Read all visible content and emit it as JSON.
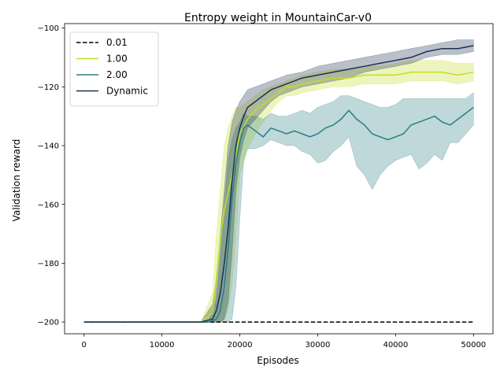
{
  "chart_data": {
    "type": "line",
    "title": "Entropy weight in MountainCar-v0",
    "xlabel": "Episodes",
    "ylabel": "Validation reward",
    "xlim": [
      -2500,
      52500
    ],
    "ylim": [
      -204,
      -98.5
    ],
    "xticks": [
      0,
      10000,
      20000,
      30000,
      40000,
      50000
    ],
    "yticks": [
      -200,
      -180,
      -160,
      -140,
      -120,
      -100
    ],
    "legend_position": "upper-left",
    "grid": false,
    "series": [
      {
        "name": "0.01",
        "color": "#000000",
        "dashed": true,
        "band": false,
        "x": [
          0,
          50000
        ],
        "y": [
          -200,
          -200
        ],
        "lower": [
          -200,
          -200
        ],
        "upper": [
          -200,
          -200
        ]
      },
      {
        "name": "1.00",
        "color": "#c2df23",
        "dashed": false,
        "band": true,
        "x": [
          0,
          15000,
          16500,
          17000,
          17500,
          18000,
          18500,
          19000,
          19500,
          20000,
          21000,
          22000,
          23000,
          24000,
          25000,
          26000,
          27000,
          28000,
          30000,
          32000,
          34000,
          36000,
          38000,
          40000,
          42000,
          44000,
          46000,
          48000,
          50000
        ],
        "y": [
          -200,
          -200,
          -197,
          -185,
          -172,
          -162,
          -156,
          -150,
          -143,
          -136,
          -131,
          -128,
          -126,
          -124,
          -122,
          -120,
          -120,
          -119,
          -118,
          -117,
          -117,
          -116,
          -116,
          -116,
          -115,
          -115,
          -115,
          -116,
          -115
        ],
        "lower": [
          -200,
          -200,
          -200,
          -200,
          -200,
          -199,
          -196,
          -187,
          -170,
          -150,
          -141,
          -136,
          -132,
          -128,
          -125,
          -123,
          -123,
          -122,
          -121,
          -120,
          -120,
          -119,
          -119,
          -119,
          -118,
          -118,
          -118,
          -119,
          -118
        ],
        "upper": [
          -200,
          -200,
          -190,
          -170,
          -155,
          -140,
          -134,
          -130,
          -127,
          -127,
          -125,
          -123,
          -121,
          -120,
          -119,
          -118,
          -117,
          -116,
          -115,
          -114,
          -114,
          -113,
          -113,
          -112,
          -111,
          -111,
          -111,
          -112,
          -112
        ]
      },
      {
        "name": "2.00",
        "color": "#2a7e85",
        "dashed": false,
        "band": true,
        "x": [
          0,
          16000,
          17000,
          17500,
          18000,
          18500,
          19000,
          19500,
          20000,
          20500,
          21000,
          22000,
          23000,
          24000,
          25000,
          26000,
          27000,
          28000,
          29000,
          30000,
          31000,
          32000,
          33000,
          34000,
          35000,
          36000,
          37000,
          38000,
          39000,
          40000,
          41000,
          42000,
          43000,
          44000,
          45000,
          46000,
          47000,
          48000,
          49000,
          50000
        ],
        "y": [
          -200,
          -200,
          -199,
          -196,
          -188,
          -175,
          -158,
          -146,
          -139,
          -134,
          -133,
          -135,
          -137,
          -134,
          -135,
          -136,
          -135,
          -136,
          -137,
          -136,
          -134,
          -133,
          -131,
          -128,
          -131,
          -133,
          -136,
          -137,
          -138,
          -137,
          -136,
          -133,
          -132,
          -131,
          -130,
          -132,
          -133,
          -131,
          -129,
          -127
        ],
        "lower": [
          -200,
          -200,
          -200,
          -200,
          -200,
          -200,
          -199,
          -188,
          -165,
          -145,
          -141,
          -141,
          -140,
          -138,
          -139,
          -140,
          -140,
          -142,
          -143,
          -146,
          -145,
          -142,
          -140,
          -137,
          -147,
          -150,
          -155,
          -150,
          -147,
          -145,
          -144,
          -143,
          -148,
          -146,
          -143,
          -145,
          -139,
          -139,
          -136,
          -133
        ],
        "upper": [
          -200,
          -200,
          -192,
          -178,
          -160,
          -145,
          -138,
          -134,
          -132,
          -129,
          -130,
          -130,
          -131,
          -129,
          -130,
          -130,
          -129,
          -128,
          -129,
          -127,
          -126,
          -125,
          -123,
          -123,
          -124,
          -125,
          -126,
          -127,
          -127,
          -126,
          -124,
          -124,
          -124,
          -124,
          -124,
          -124,
          -124,
          -124,
          -124,
          -122
        ]
      },
      {
        "name": "Dynamic",
        "color": "#1c3051",
        "dashed": false,
        "band": true,
        "x": [
          0,
          15000,
          16500,
          17000,
          17500,
          18000,
          18500,
          19000,
          19500,
          20000,
          20500,
          21000,
          22000,
          23000,
          24000,
          25000,
          26000,
          28000,
          30000,
          32000,
          34000,
          36000,
          38000,
          40000,
          42000,
          44000,
          46000,
          48000,
          50000
        ],
        "y": [
          -200,
          -200,
          -199,
          -196,
          -190,
          -180,
          -168,
          -152,
          -140,
          -134,
          -130,
          -127,
          -125,
          -123,
          -121,
          -120,
          -119,
          -117,
          -116,
          -115,
          -114,
          -113,
          -112,
          -111,
          -110,
          -108,
          -107,
          -107,
          -106
        ],
        "lower": [
          -200,
          -200,
          -200,
          -200,
          -200,
          -199,
          -193,
          -176,
          -155,
          -144,
          -138,
          -134,
          -131,
          -128,
          -125,
          -123,
          -122,
          -120,
          -119,
          -118,
          -117,
          -115,
          -114,
          -113,
          -112,
          -110,
          -109,
          -109,
          -108
        ],
        "upper": [
          -200,
          -200,
          -194,
          -185,
          -170,
          -155,
          -140,
          -132,
          -128,
          -125,
          -123,
          -121,
          -120,
          -119,
          -118,
          -117,
          -116,
          -115,
          -113,
          -112,
          -111,
          -110,
          -109,
          -108,
          -107,
          -106,
          -105,
          -104,
          -104
        ]
      }
    ]
  }
}
